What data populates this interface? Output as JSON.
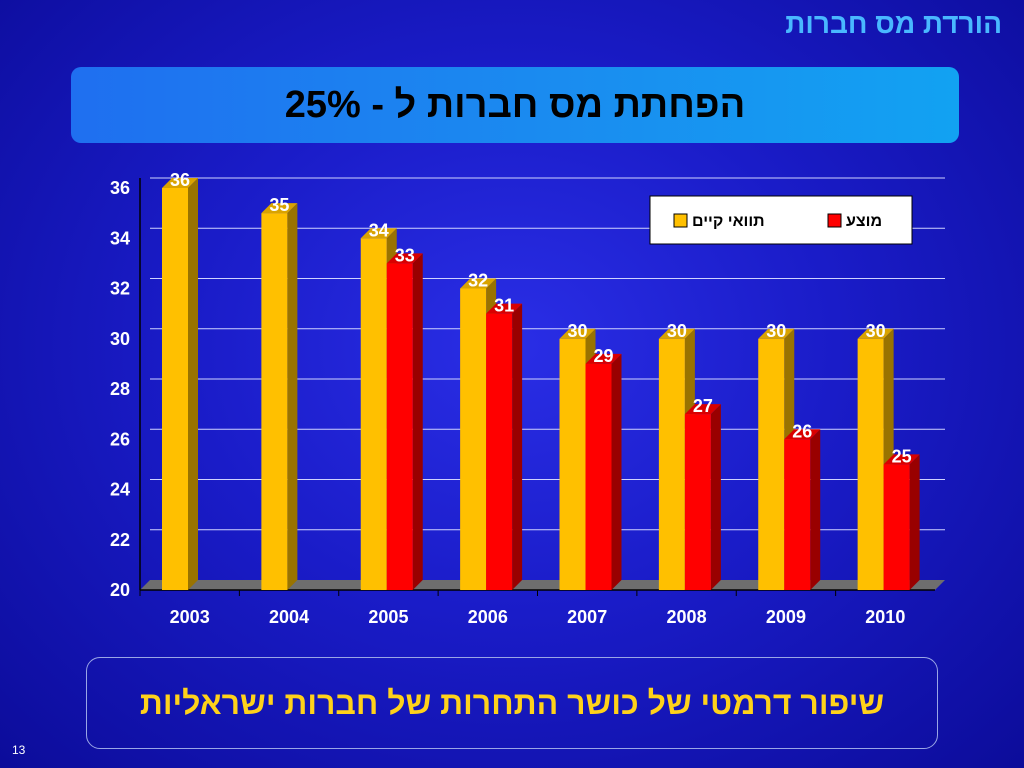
{
  "slide": {
    "corner_title": "הורדת מס חברות",
    "title": "הפחתת מס חברות ל - 25%",
    "bottom_text": "שיפור דרמטי של כושר התחרות של חברות ישראליות",
    "page_number": "13"
  },
  "chart_data": {
    "type": "bar",
    "categories": [
      "2003",
      "2004",
      "2005",
      "2006",
      "2007",
      "2008",
      "2009",
      "2010"
    ],
    "series": [
      {
        "name": "תוואי קיים",
        "color": "#ffc000",
        "values": [
          36,
          35,
          34,
          32,
          30,
          30,
          30,
          30
        ]
      },
      {
        "name": "מוצע",
        "color": "#ff0000",
        "values": [
          null,
          null,
          33,
          31,
          29,
          27,
          26,
          25
        ]
      }
    ],
    "ylim": [
      20,
      36
    ],
    "yticks": [
      20,
      22,
      24,
      26,
      28,
      30,
      32,
      34,
      36
    ],
    "grid": true,
    "legend_position": "top-right",
    "style": "3d-bars"
  }
}
